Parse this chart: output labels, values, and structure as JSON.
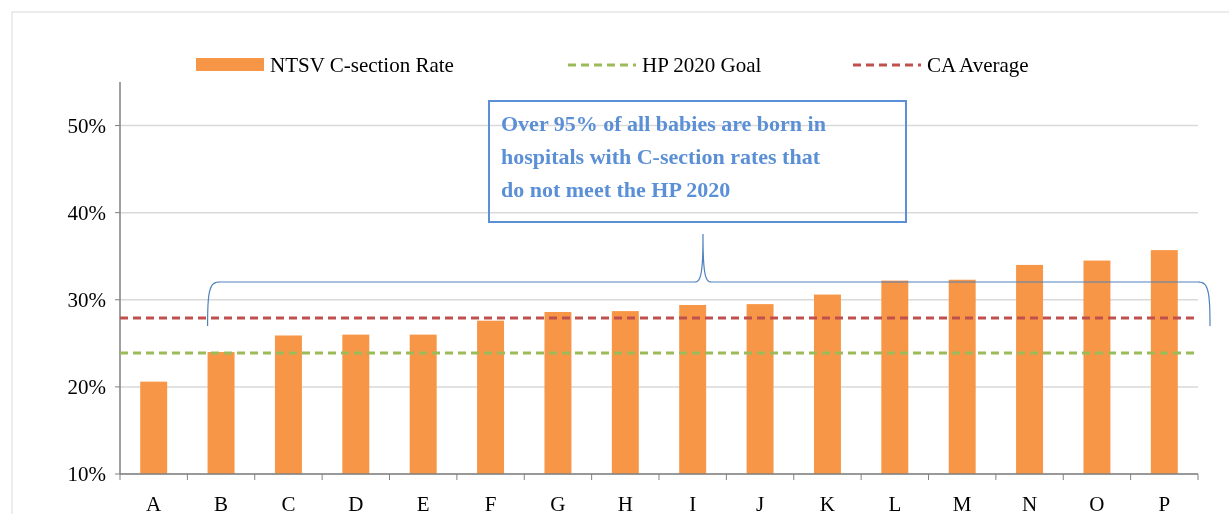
{
  "chart_data": {
    "type": "bar",
    "categories": [
      "A",
      "B",
      "C",
      "D",
      "E",
      "F",
      "G",
      "H",
      "I",
      "J",
      "K",
      "L",
      "M",
      "N",
      "O",
      "P"
    ],
    "series": [
      {
        "name": "NTSV C-section Rate",
        "color": "#f79646",
        "values": [
          20.6,
          24.0,
          25.9,
          26.0,
          26.0,
          27.6,
          28.6,
          28.7,
          29.4,
          29.5,
          30.6,
          32.2,
          32.3,
          34.0,
          34.5,
          35.7
        ]
      }
    ],
    "ref_lines": [
      {
        "axis": "y",
        "value": 23.9,
        "label": "HP 2020 Goal",
        "color": "#9bbb59",
        "line_style": "dashed"
      },
      {
        "axis": "y",
        "value": 27.9,
        "label": "CA Average",
        "color": "#c0504d",
        "line_style": "dashed"
      }
    ],
    "ylim": [
      10,
      55
    ],
    "yticks": [
      {
        "value": 10,
        "label": "10%"
      },
      {
        "value": 20,
        "label": "20%"
      },
      {
        "value": 30,
        "label": "30%"
      },
      {
        "value": 40,
        "label": "40%"
      },
      {
        "value": 50,
        "label": "50%"
      }
    ],
    "grid": "y",
    "legend": "top",
    "annotations": [
      "Over 95% of all babies are born in hospitals with C-section rates that do not meet the HP 2020"
    ]
  }
}
